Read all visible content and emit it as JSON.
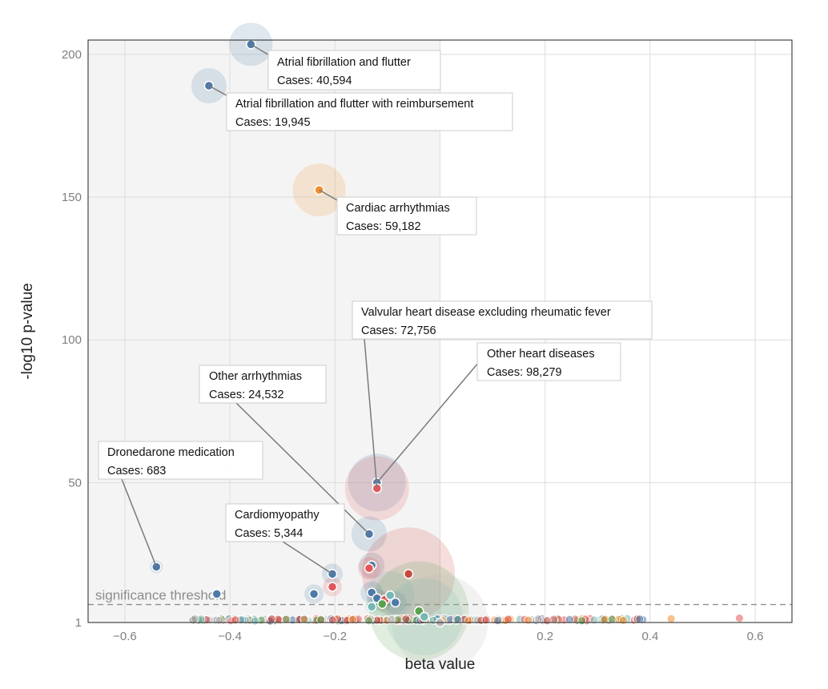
{
  "chart_data": {
    "type": "scatter",
    "xlabel": "beta value",
    "ylabel": "-log10 p-value",
    "xlim": [
      -0.67,
      0.67
    ],
    "ylim": [
      1,
      205
    ],
    "x_ticks": [
      -0.6,
      -0.4,
      -0.2,
      0,
      0.2,
      0.4,
      0.6
    ],
    "x_tick_labels": [
      "−0.6",
      "−0.4",
      "−0.2",
      "",
      "0.2",
      "0.4",
      "0.6"
    ],
    "y_ticks": [
      1,
      50,
      100,
      150,
      200
    ],
    "y_tick_labels": [
      "1",
      "50",
      "100",
      "150",
      "200"
    ],
    "grid": true,
    "shaded_region_x": [
      -0.67,
      0
    ],
    "threshold": {
      "y": 7.3,
      "label": "significance threshold"
    },
    "colors": {
      "blue": "#4e79a7",
      "orange": "#f28e2b",
      "red": "#e15759",
      "green": "#59a14f",
      "darkred": "#c8493d",
      "teal": "#76b7b2",
      "gray": "#b7b7b7"
    },
    "points": [
      {
        "x": -0.36,
        "y": 203.5,
        "color": "#4e79a7",
        "halo": 27
      },
      {
        "x": -0.44,
        "y": 189,
        "color": "#4e79a7",
        "halo": 22
      },
      {
        "x": -0.23,
        "y": 152.5,
        "color": "#f28e2b",
        "halo": 33
      },
      {
        "x": -0.12,
        "y": 50,
        "color": "#4e79a7",
        "halo": 36
      },
      {
        "x": -0.12,
        "y": 48,
        "color": "#e15759",
        "halo": 40
      },
      {
        "x": -0.135,
        "y": 32,
        "color": "#4e79a7",
        "halo": 22
      },
      {
        "x": -0.205,
        "y": 18,
        "color": "#4e79a7",
        "halo": 13
      },
      {
        "x": -0.205,
        "y": 13.5,
        "color": "#e15759",
        "halo": 12
      },
      {
        "x": -0.54,
        "y": 20.5,
        "color": "#4e79a7",
        "halo": 8
      },
      {
        "x": -0.425,
        "y": 11,
        "color": "#4e79a7",
        "halo": 6
      },
      {
        "x": -0.24,
        "y": 11,
        "color": "#4e79a7",
        "halo": 12
      },
      {
        "x": -0.13,
        "y": 21,
        "color": "#4e79a7",
        "halo": 16
      },
      {
        "x": -0.135,
        "y": 20,
        "color": "#e15759",
        "halo": 14
      },
      {
        "x": -0.06,
        "y": 18,
        "color": "#c8493d",
        "halo": 58
      },
      {
        "x": -0.13,
        "y": 11.5,
        "color": "#4e79a7",
        "halo": 14
      },
      {
        "x": -0.12,
        "y": 9.5,
        "color": "#4e79a7",
        "halo": 12
      },
      {
        "x": -0.105,
        "y": 9,
        "color": "#e15759",
        "halo": 10
      },
      {
        "x": -0.095,
        "y": 10.5,
        "color": "#76b7b2",
        "halo": 30
      },
      {
        "x": -0.11,
        "y": 7.5,
        "color": "#59a14f",
        "halo": 10
      },
      {
        "x": -0.13,
        "y": 6.5,
        "color": "#76b7b2",
        "halo": 8
      },
      {
        "x": -0.085,
        "y": 8,
        "color": "#4e79a7",
        "halo": 14
      },
      {
        "x": -0.04,
        "y": 5,
        "color": "#59a14f",
        "halo": 62
      },
      {
        "x": -0.03,
        "y": 3,
        "color": "#76b7b2",
        "halo": 48
      },
      {
        "x": 0,
        "y": 1,
        "color": "#b7b7b7",
        "halo": 60
      }
    ],
    "annotations": [
      {
        "name": "Atrial fibrillation and flutter",
        "cases": "Cases: 40,594",
        "x": -0.36,
        "y": 203.5
      },
      {
        "name": "Atrial fibrillation and flutter with reimbursement",
        "cases": "Cases: 19,945",
        "x": -0.44,
        "y": 189
      },
      {
        "name": "Cardiac arrhythmias",
        "cases": "Cases: 59,182",
        "x": -0.23,
        "y": 152.5
      },
      {
        "name": "Valvular heart disease excluding rheumatic fever",
        "cases": "Cases: 72,756",
        "x": -0.12,
        "y": 48
      },
      {
        "name": "Other heart diseases",
        "cases": "Cases: 98,279",
        "x": -0.12,
        "y": 50
      },
      {
        "name": "Other arrhythmias",
        "cases": "Cases: 24,532",
        "x": -0.135,
        "y": 32
      },
      {
        "name": "Dronedarone medication",
        "cases": "Cases: 683",
        "x": -0.54,
        "y": 20.5
      },
      {
        "name": "Cardiomyopathy",
        "cases": "Cases: 5,344",
        "x": -0.205,
        "y": 18
      }
    ]
  }
}
